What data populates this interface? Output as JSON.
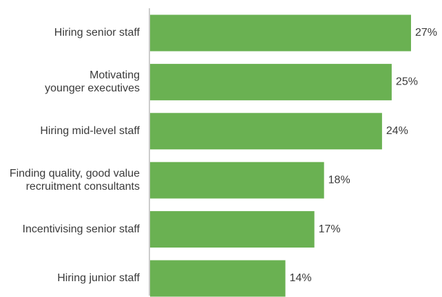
{
  "chart_data": {
    "type": "bar",
    "orientation": "horizontal",
    "title": "",
    "xlabel": "",
    "ylabel": "",
    "categories": [
      [
        "Hiring senior staff"
      ],
      [
        "Motivating",
        "younger executives"
      ],
      [
        "Hiring mid-level staff"
      ],
      [
        "Finding quality, good value",
        "recruitment consultants"
      ],
      [
        "Incentivising senior staff"
      ],
      [
        "Hiring junior staff"
      ]
    ],
    "values": [
      27,
      25,
      24,
      18,
      17,
      14
    ],
    "value_labels": [
      "27%",
      "25%",
      "24%",
      "18%",
      "17%",
      "14%"
    ],
    "xlim": [
      0,
      27
    ],
    "grid": false,
    "legend": "none",
    "colors": {
      "bar": "#6ab152",
      "axis": "#9a9a9a",
      "text": "#3a3a3a"
    }
  }
}
